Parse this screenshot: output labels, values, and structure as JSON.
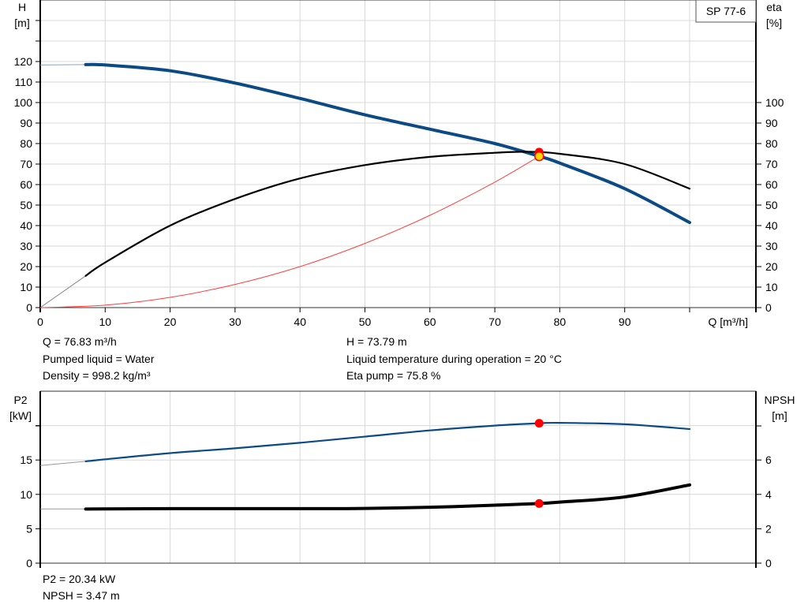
{
  "chart_data": [
    {
      "type": "line",
      "title": "SP 77-6",
      "xlabel": "Q [m³/h]",
      "ylabel_left": "H\n[m]",
      "ylabel_right": "eta\n[%]",
      "x_ticks": [
        0,
        10,
        20,
        30,
        40,
        50,
        60,
        70,
        80,
        90
      ],
      "xlim": [
        0,
        110
      ],
      "y_left_ticks": [
        0,
        10,
        20,
        30,
        40,
        50,
        60,
        70,
        80,
        90,
        100,
        110,
        120
      ],
      "ylim_left": [
        0,
        150
      ],
      "y_right_ticks": [
        0,
        10,
        20,
        30,
        40,
        50,
        60,
        70,
        80,
        90,
        100
      ],
      "ylim_right": [
        0,
        150
      ],
      "grid": true,
      "series": [
        {
          "id": "H",
          "axis": "left",
          "color": "#0b4a85",
          "x": [
            7,
            10,
            20,
            30,
            40,
            50,
            60,
            70,
            76.83,
            80,
            90,
            100
          ],
          "y": [
            118.5,
            118.3,
            115.5,
            109.5,
            102,
            94,
            87,
            80,
            73.79,
            70.5,
            58,
            41.5
          ],
          "extension": {
            "x": [
              0,
              7
            ],
            "y": [
              118.3,
              118.5
            ]
          }
        },
        {
          "id": "eta",
          "axis": "right",
          "color": "#000000",
          "x": [
            7,
            10,
            20,
            30,
            40,
            50,
            60,
            70,
            75,
            80,
            90,
            100
          ],
          "y": [
            15.5,
            22,
            40,
            53,
            63,
            69.5,
            73.5,
            75.5,
            76,
            75,
            70,
            58
          ],
          "extension": {
            "x": [
              0,
              7
            ],
            "y": [
              0,
              15.5
            ]
          }
        },
        {
          "id": "system",
          "axis": "left",
          "color": "#ff4040",
          "x": [
            0,
            10,
            20,
            30,
            40,
            50,
            60,
            70,
            76.83
          ],
          "y": [
            0,
            1.2,
            5,
            11.3,
            20,
            31.3,
            45,
            61.2,
            73.79
          ]
        }
      ],
      "operating_point": {
        "Q": 76.83,
        "H": 73.79,
        "eta": 75.8
      }
    },
    {
      "type": "line",
      "ylabel_left": "P2\n[kW]",
      "ylabel_right": "NPSH\n[m]",
      "xlim": [
        0,
        110
      ],
      "y_left_ticks": [
        0,
        5,
        10,
        15
      ],
      "ylim_left": [
        0,
        25
      ],
      "y_right_ticks": [
        0,
        2,
        4,
        6
      ],
      "ylim_right": [
        0,
        10
      ],
      "grid": true,
      "series": [
        {
          "id": "P2",
          "axis": "left",
          "color": "#0b4a85",
          "x": [
            7,
            10,
            20,
            30,
            40,
            50,
            60,
            70,
            76.83,
            80,
            90,
            100
          ],
          "y": [
            14.8,
            15.1,
            16.0,
            16.7,
            17.5,
            18.4,
            19.3,
            20.0,
            20.34,
            20.4,
            20.2,
            19.5
          ],
          "extension": {
            "x": [
              0,
              7
            ],
            "y": [
              14.2,
              14.8
            ]
          }
        },
        {
          "id": "NPSH",
          "axis": "right",
          "color": "#000000",
          "x": [
            7,
            20,
            40,
            50,
            60,
            70,
            76.83,
            80,
            90,
            100
          ],
          "y": [
            3.15,
            3.17,
            3.17,
            3.18,
            3.25,
            3.37,
            3.47,
            3.55,
            3.85,
            4.55
          ],
          "extension": {
            "x": [
              0,
              7
            ],
            "y": [
              3.15,
              3.15
            ]
          }
        }
      ],
      "operating_point": {
        "Q": 76.83,
        "P2": 20.34,
        "NPSH": 3.47
      }
    }
  ],
  "info_top": {
    "q": "Q = 76.83 m³/h",
    "liquid": "Pumped liquid = Water",
    "density": "Density = 998.2 kg/m³",
    "h": "H = 73.79 m",
    "temp": "Liquid temperature during operation = 20 °C",
    "eta": "Eta pump = 75.8 %"
  },
  "info_bottom": {
    "p2": "P2 = 20.34 kW",
    "npsh": "NPSH = 3.47 m"
  }
}
